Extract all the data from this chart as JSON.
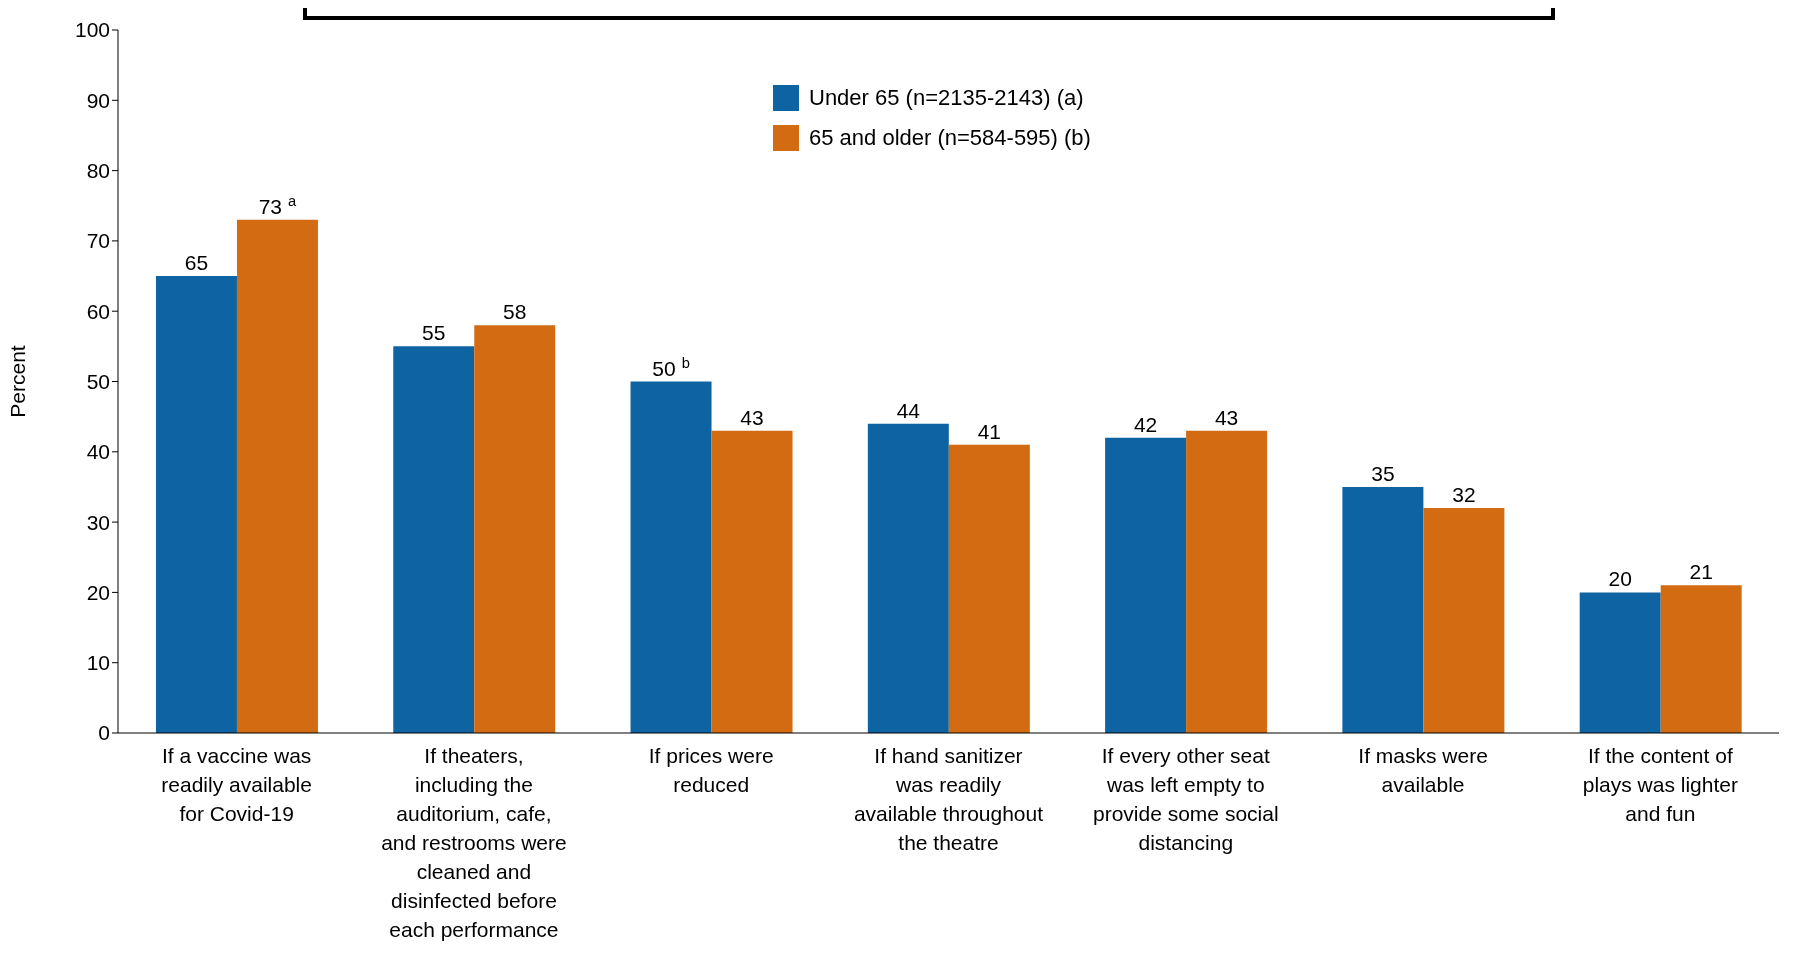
{
  "chart_data": {
    "type": "bar",
    "ylabel": "Percent",
    "categories": [
      "If a vaccine was readily available for Covid-19",
      "If theaters, including the auditorium, cafe, and restrooms were cleaned and disinfected before each performance",
      "If prices were reduced",
      "If hand sanitizer was readily available throughout the theatre",
      "If every other seat was left empty to provide some social distancing",
      "If masks were available",
      "If the content of plays was lighter and fun"
    ],
    "series": [
      {
        "name": "Under 65 (n=2135-2143) (a)",
        "color": "#0e64a3",
        "values": [
          65,
          55,
          50,
          44,
          42,
          35,
          20
        ],
        "value_labels": [
          "65",
          "55",
          "50$^{b}$",
          "44",
          "42",
          "35",
          "20"
        ]
      },
      {
        "name": "65 and older (n=584-595) (b)",
        "color": "#d36b12",
        "values": [
          73,
          58,
          43,
          41,
          43,
          32,
          21
        ],
        "value_labels": [
          "73$^{a}$",
          "58",
          "43",
          "41",
          "43",
          "32",
          "21"
        ]
      }
    ],
    "ylim": [
      0,
      100
    ],
    "yticks": [
      0,
      10,
      20,
      30,
      40,
      50,
      60,
      70,
      80,
      90,
      100
    ],
    "grid": false,
    "legend": "top"
  }
}
